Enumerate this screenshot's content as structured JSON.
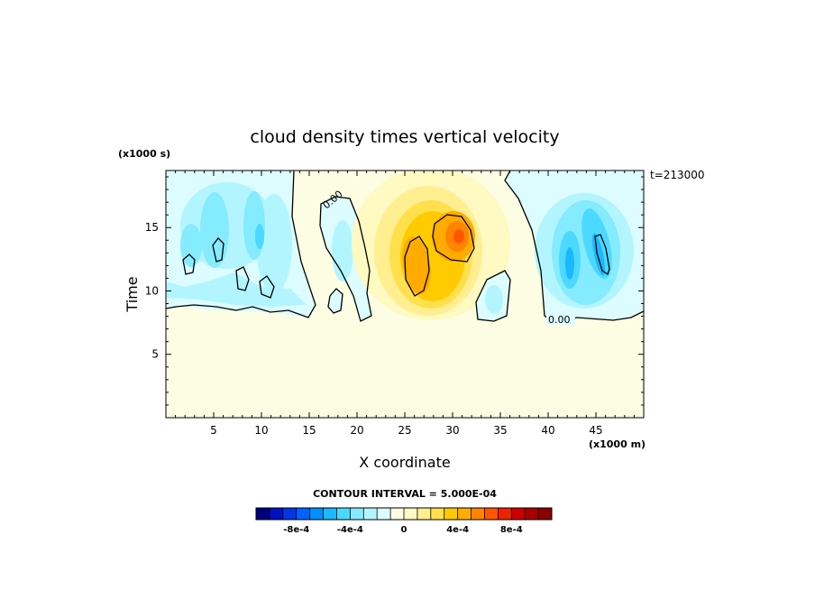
{
  "chart_data": {
    "type": "heatmap",
    "title": "cloud density times vertical velocity",
    "xlabel": "X coordinate",
    "ylabel": "Time",
    "x_scale_label": "(x1000 m)",
    "y_scale_label": "(x1000 s)",
    "time_stamp": "t=213000",
    "xlim": [
      0,
      50
    ],
    "ylim": [
      0,
      19.5
    ],
    "x_ticks": [
      5,
      10,
      15,
      20,
      25,
      30,
      35,
      40,
      45
    ],
    "y_ticks": [
      5,
      10,
      15
    ],
    "x_tick_labels": [
      "5",
      "10",
      "15",
      "20",
      "25",
      "30",
      "35",
      "40",
      "45"
    ],
    "y_tick_labels": [
      "5",
      "10",
      "15"
    ],
    "contour_labels": [
      "0.00",
      "0.00"
    ],
    "contour_interval_text": "CONTOUR INTERVAL = 5.000E-04",
    "colorbar": {
      "min": -0.0011,
      "max": 0.0011,
      "step": 0.0001,
      "colors": [
        "#00007f",
        "#0012bf",
        "#0036e6",
        "#0062ff",
        "#008fff",
        "#19b8ff",
        "#4cd9ff",
        "#85ebff",
        "#b3f5ff",
        "#dcfcff",
        "#fdfde4",
        "#fff9c2",
        "#ffef91",
        "#ffe04c",
        "#ffcb00",
        "#ffab00",
        "#ff8400",
        "#ff5500",
        "#ee2200",
        "#cc0000",
        "#a60000",
        "#8a0000"
      ],
      "tick_values": [
        -0.0008,
        -0.0004,
        0,
        0.0004,
        0.0008
      ],
      "tick_labels": [
        "-8e-4",
        "-4e-4",
        "0",
        "4e-4",
        "8e-4"
      ]
    },
    "features": [
      {
        "name": "zero-region",
        "x": 25,
        "y": 4,
        "value": 2e-05
      },
      {
        "name": "positive-core-west",
        "x": 26.5,
        "y": 13.3,
        "value": 0.00062
      },
      {
        "name": "positive-core-east",
        "x": 30.5,
        "y": 14.8,
        "value": 0.0008
      },
      {
        "name": "positive-envelope",
        "x": 28.5,
        "y": 14,
        "value": 0.00025
      },
      {
        "name": "negative-band-west",
        "x": 6,
        "y": 14.5,
        "value": -0.00018
      },
      {
        "name": "negative-band-east",
        "x": 44,
        "y": 14,
        "value": -0.00045
      },
      {
        "name": "negative-cell",
        "x": 42.5,
        "y": 13,
        "value": -0.00038
      },
      {
        "name": "negative-streak",
        "x": 45.5,
        "y": 14.2,
        "value": -0.00058
      }
    ]
  }
}
